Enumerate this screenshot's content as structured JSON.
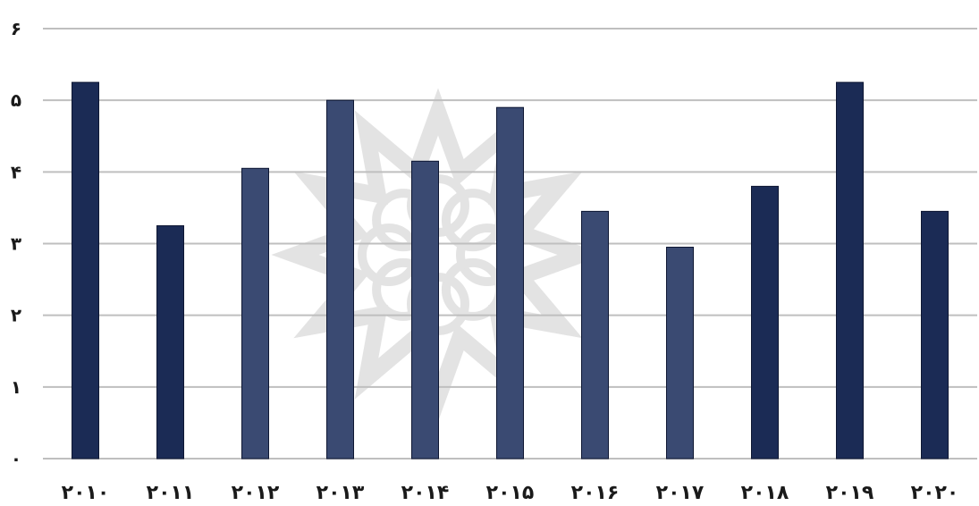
{
  "chart_data": {
    "type": "bar",
    "title": "",
    "xlabel": "",
    "ylabel": "",
    "categories": [
      "۲۰۱۰",
      "۲۰۱۱",
      "۲۰۱۲",
      "۲۰۱۳",
      "۲۰۱۴",
      "۲۰۱۵",
      "۲۰۱۶",
      "۲۰۱۷",
      "۲۰۱۸",
      "۲۰۱۹",
      "۲۰۲۰"
    ],
    "values": [
      5.25,
      3.25,
      4.05,
      5.0,
      4.15,
      4.9,
      3.45,
      2.95,
      3.8,
      5.25,
      3.45
    ],
    "ylim": [
      0,
      6
    ],
    "yticks": [
      0,
      1,
      2,
      3,
      4,
      5,
      6
    ],
    "ytick_labels": [
      "۰",
      "۱",
      "۲",
      "۳",
      "۴",
      "۵",
      "۶"
    ],
    "grid": true,
    "legend": "none",
    "colors": {
      "bar_dark": "#1b2b55",
      "bar_light": "#3a4a72",
      "grid": "#bfbfbf",
      "watermark": "#c8c8c8"
    },
    "bar_shades": [
      "dark",
      "dark",
      "light",
      "light",
      "light",
      "light",
      "light",
      "light",
      "dark",
      "dark",
      "dark"
    ]
  }
}
